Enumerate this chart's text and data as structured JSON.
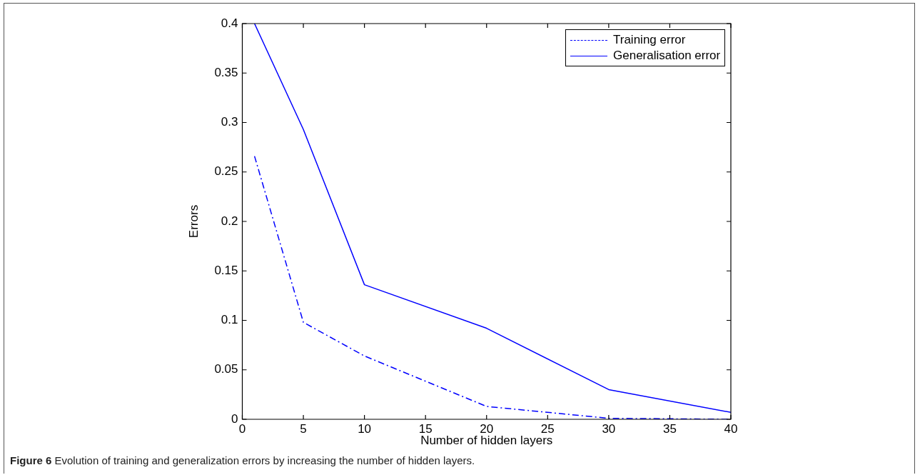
{
  "chart_data": {
    "type": "line",
    "xlabel": "Number of hidden layers",
    "ylabel": "Errors",
    "x": [
      1,
      5,
      10,
      20,
      30,
      40
    ],
    "series": [
      {
        "name": "Training error",
        "color": "#0000ff",
        "line_style": "dashed",
        "values": [
          0.266,
          0.098,
          0.064,
          0.013,
          0.001,
          0
        ]
      },
      {
        "name": "Generalisation error",
        "color": "#0000ff",
        "line_style": "solid",
        "values": [
          0.4,
          0.293,
          0.136,
          0.092,
          0.03,
          0.007
        ]
      }
    ],
    "xlim": [
      0,
      40
    ],
    "xticks": [
      0,
      5,
      10,
      15,
      20,
      25,
      30,
      35,
      40
    ],
    "ylim": [
      0,
      0.4
    ],
    "yticks": [
      0,
      0.05,
      0.1,
      0.15,
      0.2,
      0.25,
      0.3,
      0.35,
      0.4
    ],
    "legend": "top right",
    "marker": "none",
    "annotations": [
      "Figure 6 Evolution of training and generalization errors by increasing the number of hidden layers."
    ]
  }
}
